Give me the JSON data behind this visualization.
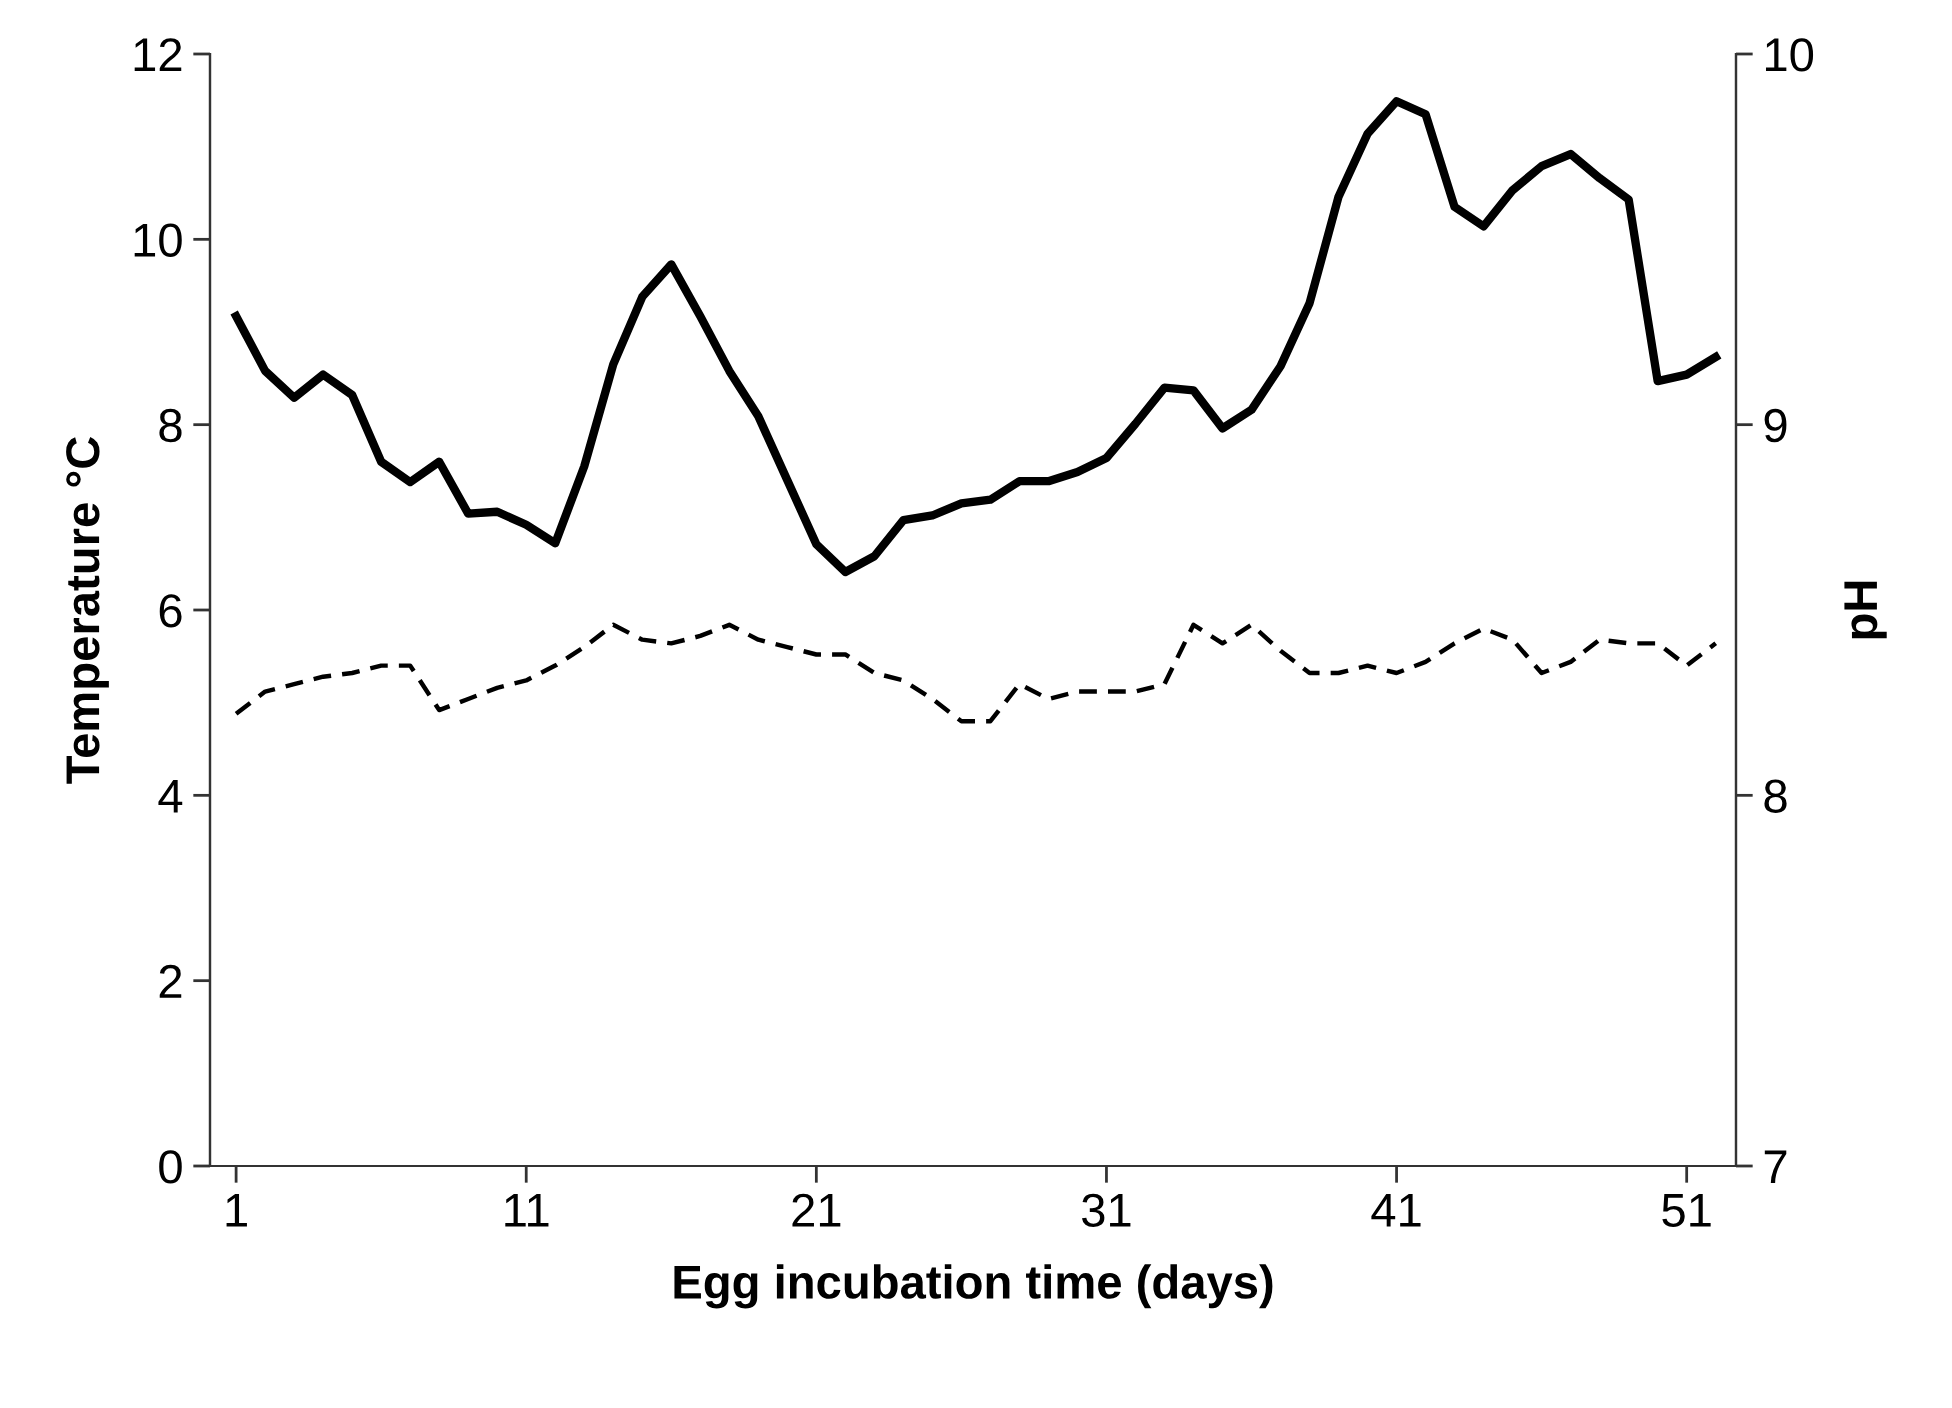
{
  "chart_data": {
    "type": "line",
    "xlabel": "Egg incubation time (days)",
    "ylabel": "Temperature °C",
    "y2label": "pH",
    "x": [
      1,
      2,
      3,
      4,
      5,
      6,
      7,
      8,
      9,
      10,
      11,
      12,
      13,
      14,
      15,
      16,
      17,
      18,
      19,
      20,
      21,
      22,
      23,
      24,
      25,
      26,
      27,
      28,
      29,
      30,
      31,
      32,
      33,
      34,
      35,
      36,
      37,
      38,
      39,
      40,
      41,
      42,
      43,
      44,
      45,
      46,
      47,
      48,
      49,
      50,
      51,
      52
    ],
    "xlim": [
      0.1,
      52.7
    ],
    "xticks": [
      1,
      11,
      21,
      31,
      41,
      51
    ],
    "ylim": [
      0,
      12
    ],
    "yticks": [
      0,
      2,
      4,
      6,
      8,
      10,
      12
    ],
    "y2lim": [
      7,
      10
    ],
    "y2ticks": [
      7,
      8,
      9,
      10
    ],
    "grid": false,
    "legend": false,
    "series": [
      {
        "color": "#000000",
        "line_style": "solid",
        "values": [
          9.17,
          8.58,
          8.29,
          8.54,
          8.32,
          7.6,
          7.38,
          7.6,
          7.04,
          7.06,
          6.92,
          6.72,
          7.55,
          8.65,
          9.38,
          9.73,
          9.17,
          8.58,
          8.09,
          7.4,
          6.71,
          6.41,
          6.58,
          6.97,
          7.02,
          7.15,
          7.19,
          7.39,
          7.39,
          7.49,
          7.64,
          8.01,
          8.4,
          8.37,
          7.96,
          8.16,
          8.63,
          9.31,
          10.46,
          11.14,
          11.49,
          11.35,
          10.35,
          10.14,
          10.53,
          10.79,
          10.92,
          10.66,
          10.43,
          8.47,
          8.54,
          8.73
        ]
      },
      {
        "color": "#000000",
        "line_style": "dashed",
        "axis": "y2",
        "values": [
          8.22,
          8.28,
          8.3,
          8.32,
          8.33,
          8.35,
          8.35,
          8.23,
          8.26,
          8.29,
          8.31,
          8.35,
          8.4,
          8.46,
          8.42,
          8.41,
          8.43,
          8.46,
          8.42,
          8.4,
          8.38,
          8.38,
          8.33,
          8.31,
          8.26,
          8.2,
          8.2,
          8.3,
          8.26,
          8.28,
          8.28,
          8.28,
          8.3,
          8.46,
          8.41,
          8.46,
          8.39,
          8.33,
          8.33,
          8.35,
          8.33,
          8.36,
          8.41,
          8.45,
          8.42,
          8.33,
          8.36,
          8.42,
          8.41,
          8.41,
          8.35,
          8.41
        ]
      }
    ]
  }
}
